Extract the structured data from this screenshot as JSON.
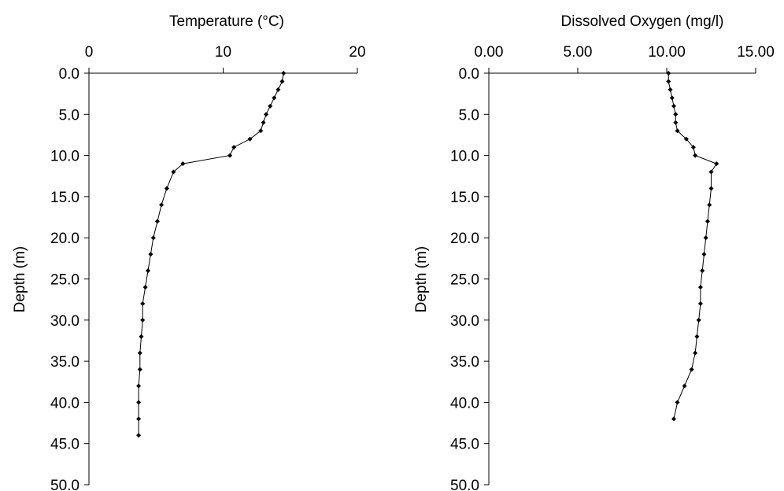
{
  "chart_data": [
    {
      "type": "line",
      "title": "Temperature  (°C)",
      "xlabel": "",
      "ylabel": "Depth (m)",
      "xlim": [
        0,
        20
      ],
      "ylim": [
        0,
        50
      ],
      "y_inverted": true,
      "x_axis_position": "top",
      "x_ticks": [
        "0",
        "10",
        "20"
      ],
      "y_ticks": [
        "0.0",
        "5.0",
        "10.0",
        "15.0",
        "20.0",
        "25.0",
        "30.0",
        "35.0",
        "40.0",
        "45.0",
        "50.0"
      ],
      "grid": false,
      "markers": "small-diamond",
      "points": [
        {
          "x": 14.5,
          "y": 0
        },
        {
          "x": 14.4,
          "y": 1
        },
        {
          "x": 14.1,
          "y": 2
        },
        {
          "x": 13.8,
          "y": 3
        },
        {
          "x": 13.5,
          "y": 4
        },
        {
          "x": 13.2,
          "y": 5
        },
        {
          "x": 13.0,
          "y": 6
        },
        {
          "x": 12.8,
          "y": 7
        },
        {
          "x": 12.0,
          "y": 8
        },
        {
          "x": 10.8,
          "y": 9
        },
        {
          "x": 10.5,
          "y": 10
        },
        {
          "x": 7.0,
          "y": 11
        },
        {
          "x": 6.3,
          "y": 12
        },
        {
          "x": 5.8,
          "y": 14
        },
        {
          "x": 5.4,
          "y": 16
        },
        {
          "x": 5.1,
          "y": 18
        },
        {
          "x": 4.8,
          "y": 20
        },
        {
          "x": 4.6,
          "y": 22
        },
        {
          "x": 4.4,
          "y": 24
        },
        {
          "x": 4.2,
          "y": 26
        },
        {
          "x": 4.0,
          "y": 28
        },
        {
          "x": 4.0,
          "y": 30
        },
        {
          "x": 3.9,
          "y": 32
        },
        {
          "x": 3.8,
          "y": 34
        },
        {
          "x": 3.8,
          "y": 36
        },
        {
          "x": 3.7,
          "y": 38
        },
        {
          "x": 3.7,
          "y": 40
        },
        {
          "x": 3.7,
          "y": 42
        },
        {
          "x": 3.7,
          "y": 44
        }
      ]
    },
    {
      "type": "line",
      "title": "Dissolved Oxygen  (mg/l)",
      "xlabel": "",
      "ylabel": "Depth (m)",
      "xlim": [
        0,
        15
      ],
      "ylim": [
        0,
        50
      ],
      "y_inverted": true,
      "x_axis_position": "top",
      "x_ticks": [
        "0.00",
        "5.00",
        "10.00",
        "15.00"
      ],
      "y_ticks": [
        "0.0",
        "5.0",
        "10.0",
        "15.0",
        "20.0",
        "25.0",
        "30.0",
        "35.0",
        "40.0",
        "45.0",
        "50.0"
      ],
      "grid": false,
      "markers": "small-diamond",
      "points": [
        {
          "x": 10.1,
          "y": 0
        },
        {
          "x": 10.1,
          "y": 1
        },
        {
          "x": 10.2,
          "y": 2
        },
        {
          "x": 10.3,
          "y": 3
        },
        {
          "x": 10.4,
          "y": 4
        },
        {
          "x": 10.5,
          "y": 5
        },
        {
          "x": 10.5,
          "y": 6
        },
        {
          "x": 10.6,
          "y": 7
        },
        {
          "x": 11.1,
          "y": 8
        },
        {
          "x": 11.5,
          "y": 9
        },
        {
          "x": 11.6,
          "y": 10
        },
        {
          "x": 12.8,
          "y": 11
        },
        {
          "x": 12.5,
          "y": 12
        },
        {
          "x": 12.5,
          "y": 14
        },
        {
          "x": 12.4,
          "y": 16
        },
        {
          "x": 12.3,
          "y": 18
        },
        {
          "x": 12.2,
          "y": 20
        },
        {
          "x": 12.1,
          "y": 22
        },
        {
          "x": 12.0,
          "y": 24
        },
        {
          "x": 11.9,
          "y": 26
        },
        {
          "x": 11.9,
          "y": 28
        },
        {
          "x": 11.8,
          "y": 30
        },
        {
          "x": 11.7,
          "y": 32
        },
        {
          "x": 11.6,
          "y": 34
        },
        {
          "x": 11.4,
          "y": 36
        },
        {
          "x": 11.0,
          "y": 38
        },
        {
          "x": 10.6,
          "y": 40
        },
        {
          "x": 10.4,
          "y": 42
        }
      ]
    }
  ]
}
